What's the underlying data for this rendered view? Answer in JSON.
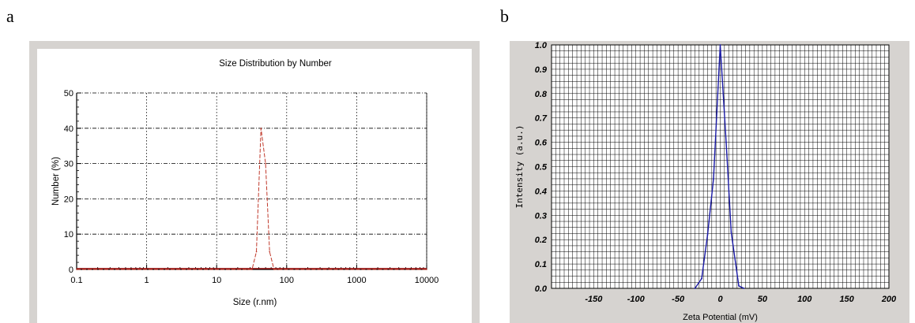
{
  "panel_labels": [
    "a",
    "b"
  ],
  "colors": {
    "frame": "#d6d3d0",
    "plot_bg": "#ffffff",
    "grid": "#000000",
    "series_a": "#c0392b",
    "series_b": "#1a1aa6",
    "baseline_a": "#8b0000"
  },
  "chart_data": [
    {
      "type": "line",
      "title": "Size Distribution by Number",
      "xlabel": "Size (r.nm)",
      "ylabel": "Number (%)",
      "xscale": "log",
      "xlim": [
        0.1,
        10000
      ],
      "ylim": [
        0,
        50
      ],
      "x_ticks": [
        0.1,
        1,
        10,
        100,
        1000,
        10000
      ],
      "x_tick_labels": [
        "0.1",
        "1",
        "10",
        "100",
        "1000",
        "10000"
      ],
      "y_ticks": [
        0,
        10,
        20,
        30,
        40,
        50
      ],
      "y_tick_labels": [
        "0",
        "10",
        "20",
        "30",
        "40",
        "50"
      ],
      "grid": true,
      "series": [
        {
          "x": [
            0.1,
            28,
            32,
            37,
            43,
            50,
            57,
            66,
            76,
            10000
          ],
          "y": [
            0,
            0,
            0,
            5,
            40,
            30,
            5,
            0,
            0,
            0
          ]
        }
      ]
    },
    {
      "type": "line",
      "xlabel": "Zeta Potential (mV)",
      "ylabel": "Intensity (a.u.)",
      "xlim": [
        -200,
        200
      ],
      "ylim": [
        0,
        1.0
      ],
      "x_ticks": [
        -150,
        -100,
        -50,
        0,
        50,
        100,
        150,
        200
      ],
      "x_tick_labels": [
        "-150",
        "-100",
        "-50",
        "0",
        "50",
        "100",
        "150",
        "200"
      ],
      "y_ticks": [
        0,
        0.1,
        0.2,
        0.3,
        0.4,
        0.5,
        0.6,
        0.7,
        0.8,
        0.9,
        1.0
      ],
      "y_tick_labels": [
        "0.0",
        "0.1",
        "0.2",
        "0.3",
        "0.4",
        "0.5",
        "0.6",
        "0.7",
        "0.8",
        "0.9",
        "1.0"
      ],
      "grid": true,
      "series": [
        {
          "x": [
            -30,
            -22,
            -15,
            -8,
            0,
            7,
            13,
            22,
            28
          ],
          "y": [
            0,
            0.04,
            0.22,
            0.45,
            1.0,
            0.6,
            0.23,
            0.01,
            0
          ]
        }
      ]
    }
  ]
}
